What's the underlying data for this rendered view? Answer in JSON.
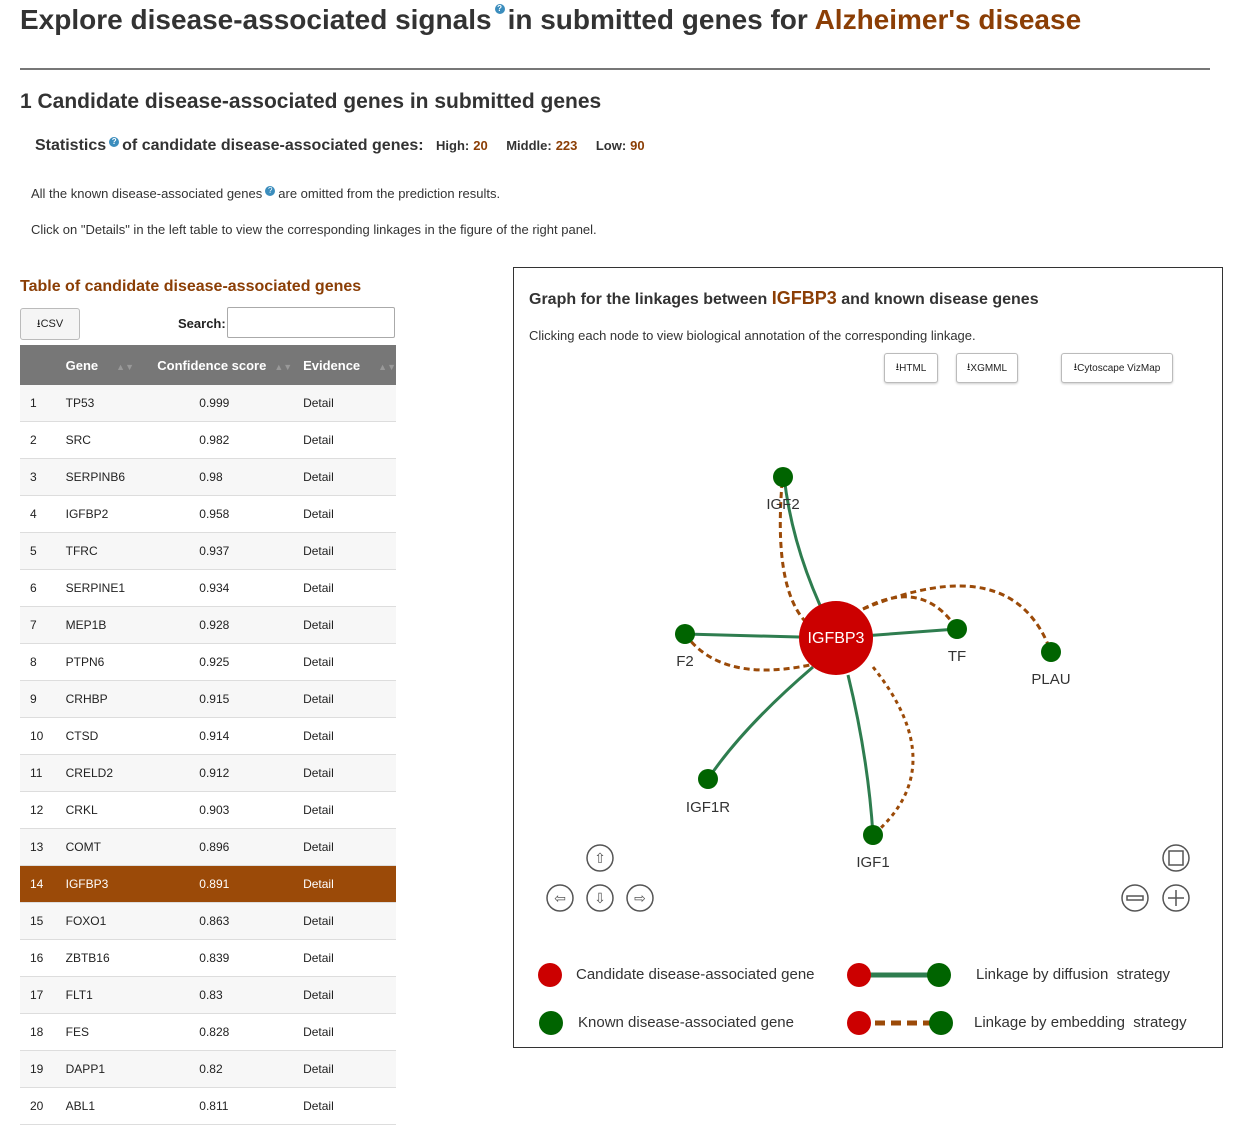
{
  "header": {
    "title_prefix": "Explore disease-associated signals",
    "title_mid": "in submitted genes for",
    "disease": "Alzheimer's disease"
  },
  "section": {
    "title": "1 Candidate disease-associated genes in submitted genes"
  },
  "stats": {
    "label_a": "Statistics",
    "label_b": "of candidate disease-associated genes:",
    "high_label": "High:",
    "high": "20",
    "middle_label": "Middle:",
    "middle": "223",
    "low_label": "Low:",
    "low": "90"
  },
  "notes": {
    "omitted_a": "All the known disease-associated genes",
    "omitted_b": "are omitted from the prediction results.",
    "click": "Click on \"Details\" in the left table to view the corresponding linkages in the figure of the right panel."
  },
  "table": {
    "title": "Table of candidate disease-associated genes",
    "csv_label": "CSV",
    "search_label": "Search:",
    "search_value": "",
    "columns": [
      "Gene",
      "Confidence score",
      "Evidence"
    ],
    "selected_index": 13,
    "rows": [
      [
        "1",
        "TP53",
        "0.999",
        "Detail"
      ],
      [
        "2",
        "SRC",
        "0.982",
        "Detail"
      ],
      [
        "3",
        "SERPINB6",
        "0.98",
        "Detail"
      ],
      [
        "4",
        "IGFBP2",
        "0.958",
        "Detail"
      ],
      [
        "5",
        "TFRC",
        "0.937",
        "Detail"
      ],
      [
        "6",
        "SERPINE1",
        "0.934",
        "Detail"
      ],
      [
        "7",
        "MEP1B",
        "0.928",
        "Detail"
      ],
      [
        "8",
        "PTPN6",
        "0.925",
        "Detail"
      ],
      [
        "9",
        "CRHBP",
        "0.915",
        "Detail"
      ],
      [
        "10",
        "CTSD",
        "0.914",
        "Detail"
      ],
      [
        "11",
        "CRELD2",
        "0.912",
        "Detail"
      ],
      [
        "12",
        "CRKL",
        "0.903",
        "Detail"
      ],
      [
        "13",
        "COMT",
        "0.896",
        "Detail"
      ],
      [
        "14",
        "IGFBP3",
        "0.891",
        "Detail"
      ],
      [
        "15",
        "FOXO1",
        "0.863",
        "Detail"
      ],
      [
        "16",
        "ZBTB16",
        "0.839",
        "Detail"
      ],
      [
        "17",
        "FLT1",
        "0.83",
        "Detail"
      ],
      [
        "18",
        "FES",
        "0.828",
        "Detail"
      ],
      [
        "19",
        "DAPP1",
        "0.82",
        "Detail"
      ],
      [
        "20",
        "ABL1",
        "0.811",
        "Detail"
      ]
    ]
  },
  "graph": {
    "title_a": "Graph for the linkages between",
    "gene": "IGFBP3",
    "title_b": "and known disease genes",
    "note": "Clicking each node to view biological annotation of the corresponding linkage.",
    "buttons": {
      "html": "HTML",
      "xgmml": "XGMML",
      "vizmap": "Cytoscape VizMap"
    },
    "center_label": "IGFBP3",
    "nodes": [
      "IGF2",
      "F2",
      "TF",
      "PLAU",
      "IGF1R",
      "IGF1"
    ],
    "colors": {
      "candidate": "#cc0000",
      "known": "#006400",
      "diffusion": "#2e7d4f",
      "embedding": "#9b4a08",
      "accent": "#8b3e05"
    },
    "legend": {
      "candidate": "Candidate disease-associated gene",
      "known": "Known disease-associated gene",
      "diffusion": "Linkage by diffusion  strategy",
      "embedding": "Linkage by embedding  strategy"
    }
  }
}
